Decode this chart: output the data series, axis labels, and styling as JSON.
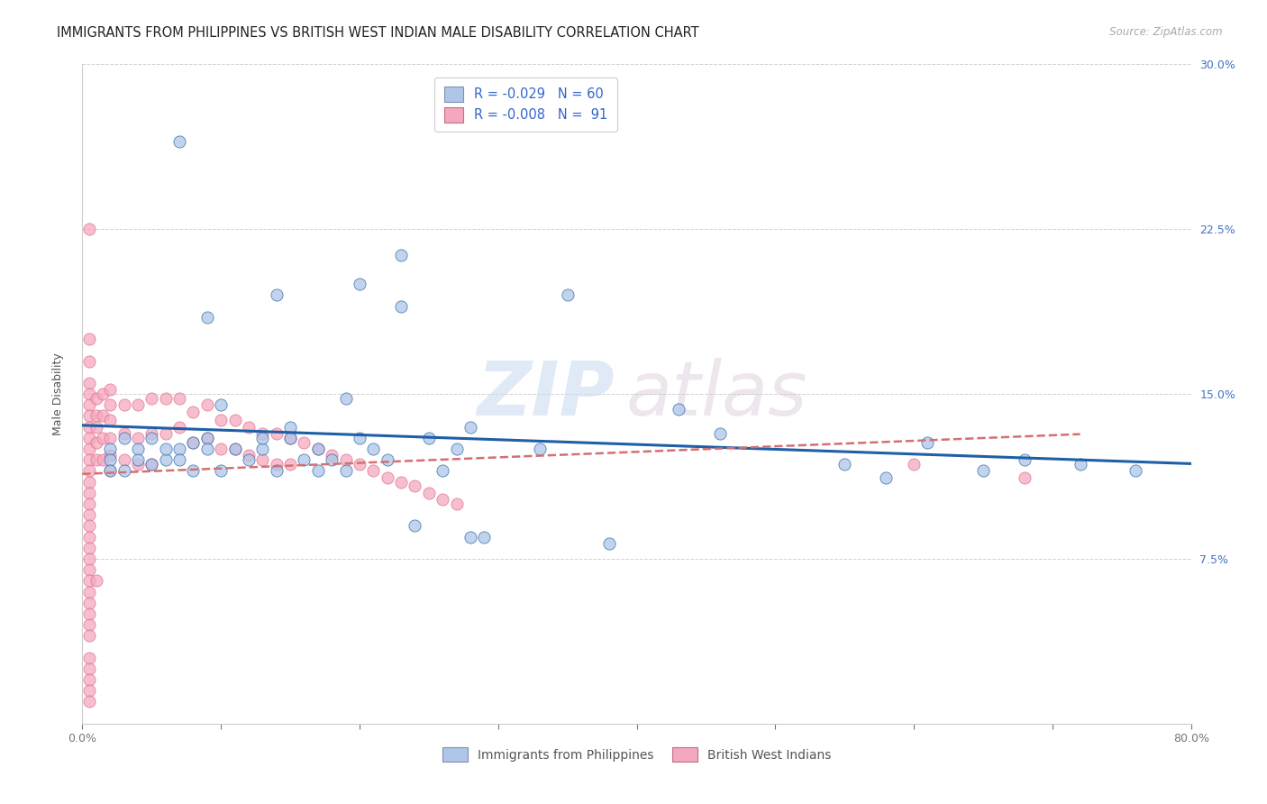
{
  "title": "IMMIGRANTS FROM PHILIPPINES VS BRITISH WEST INDIAN MALE DISABILITY CORRELATION CHART",
  "source": "Source: ZipAtlas.com",
  "ylabel": "Male Disability",
  "xlabel": "",
  "xlim": [
    0.0,
    0.8
  ],
  "ylim": [
    0.0,
    0.3
  ],
  "xticks": [
    0.0,
    0.1,
    0.2,
    0.3,
    0.4,
    0.5,
    0.6,
    0.7,
    0.8
  ],
  "xticklabels": [
    "0.0%",
    "",
    "",
    "",
    "",
    "",
    "",
    "",
    "80.0%"
  ],
  "yticks": [
    0.0,
    0.075,
    0.15,
    0.225,
    0.3
  ],
  "yticklabels_right": [
    "",
    "7.5%",
    "15.0%",
    "22.5%",
    "30.0%"
  ],
  "legend_r1": "R = -0.029",
  "legend_n1": "N = 60",
  "legend_r2": "R = -0.008",
  "legend_n2": "N =  91",
  "color_blue": "#aec6e8",
  "color_pink": "#f4a8be",
  "line_blue": "#1f5fa6",
  "line_pink_dashed": "#d47070",
  "watermark_zip": "ZIP",
  "watermark_atlas": "atlas",
  "title_fontsize": 11,
  "axis_label_fontsize": 9,
  "tick_fontsize": 9,
  "blue_scatter_x": [
    0.07,
    0.23,
    0.14,
    0.09,
    0.35,
    0.28,
    0.2,
    0.23,
    0.19,
    0.17,
    0.15,
    0.13,
    0.1,
    0.09,
    0.08,
    0.07,
    0.06,
    0.05,
    0.04,
    0.03,
    0.02,
    0.02,
    0.02,
    0.03,
    0.04,
    0.05,
    0.06,
    0.07,
    0.08,
    0.09,
    0.1,
    0.11,
    0.12,
    0.13,
    0.14,
    0.15,
    0.16,
    0.17,
    0.18,
    0.19,
    0.2,
    0.21,
    0.22,
    0.24,
    0.25,
    0.26,
    0.27,
    0.28,
    0.29,
    0.33,
    0.38,
    0.43,
    0.46,
    0.55,
    0.58,
    0.61,
    0.65,
    0.68,
    0.72,
    0.76
  ],
  "blue_scatter_y": [
    0.265,
    0.213,
    0.195,
    0.185,
    0.195,
    0.135,
    0.2,
    0.19,
    0.148,
    0.115,
    0.135,
    0.125,
    0.145,
    0.13,
    0.128,
    0.125,
    0.12,
    0.118,
    0.125,
    0.115,
    0.125,
    0.12,
    0.115,
    0.13,
    0.12,
    0.13,
    0.125,
    0.12,
    0.115,
    0.125,
    0.115,
    0.125,
    0.12,
    0.13,
    0.115,
    0.13,
    0.12,
    0.125,
    0.12,
    0.115,
    0.13,
    0.125,
    0.12,
    0.09,
    0.13,
    0.115,
    0.125,
    0.085,
    0.085,
    0.125,
    0.082,
    0.143,
    0.132,
    0.118,
    0.112,
    0.128,
    0.115,
    0.12,
    0.118,
    0.115
  ],
  "pink_scatter_x": [
    0.005,
    0.005,
    0.005,
    0.005,
    0.005,
    0.005,
    0.005,
    0.005,
    0.005,
    0.005,
    0.005,
    0.005,
    0.005,
    0.005,
    0.005,
    0.005,
    0.005,
    0.005,
    0.005,
    0.005,
    0.005,
    0.005,
    0.005,
    0.005,
    0.005,
    0.005,
    0.005,
    0.005,
    0.005,
    0.005,
    0.005,
    0.005,
    0.01,
    0.01,
    0.01,
    0.01,
    0.01,
    0.01,
    0.015,
    0.015,
    0.015,
    0.015,
    0.02,
    0.02,
    0.02,
    0.02,
    0.02,
    0.02,
    0.03,
    0.03,
    0.03,
    0.04,
    0.04,
    0.04,
    0.05,
    0.05,
    0.05,
    0.06,
    0.06,
    0.07,
    0.07,
    0.08,
    0.08,
    0.09,
    0.09,
    0.1,
    0.1,
    0.11,
    0.11,
    0.12,
    0.12,
    0.13,
    0.13,
    0.14,
    0.14,
    0.15,
    0.15,
    0.16,
    0.17,
    0.18,
    0.19,
    0.2,
    0.21,
    0.22,
    0.23,
    0.24,
    0.25,
    0.26,
    0.27,
    0.6,
    0.68
  ],
  "pink_scatter_y": [
    0.225,
    0.175,
    0.165,
    0.155,
    0.15,
    0.145,
    0.14,
    0.135,
    0.13,
    0.125,
    0.12,
    0.115,
    0.11,
    0.105,
    0.1,
    0.095,
    0.09,
    0.085,
    0.08,
    0.075,
    0.07,
    0.065,
    0.06,
    0.055,
    0.05,
    0.045,
    0.04,
    0.03,
    0.025,
    0.02,
    0.015,
    0.01,
    0.148,
    0.14,
    0.135,
    0.128,
    0.12,
    0.065,
    0.15,
    0.14,
    0.13,
    0.12,
    0.152,
    0.145,
    0.138,
    0.13,
    0.122,
    0.115,
    0.145,
    0.132,
    0.12,
    0.145,
    0.13,
    0.118,
    0.148,
    0.132,
    0.118,
    0.148,
    0.132,
    0.148,
    0.135,
    0.142,
    0.128,
    0.145,
    0.13,
    0.138,
    0.125,
    0.138,
    0.125,
    0.135,
    0.122,
    0.132,
    0.12,
    0.132,
    0.118,
    0.13,
    0.118,
    0.128,
    0.125,
    0.122,
    0.12,
    0.118,
    0.115,
    0.112,
    0.11,
    0.108,
    0.105,
    0.102,
    0.1,
    0.118,
    0.112
  ]
}
